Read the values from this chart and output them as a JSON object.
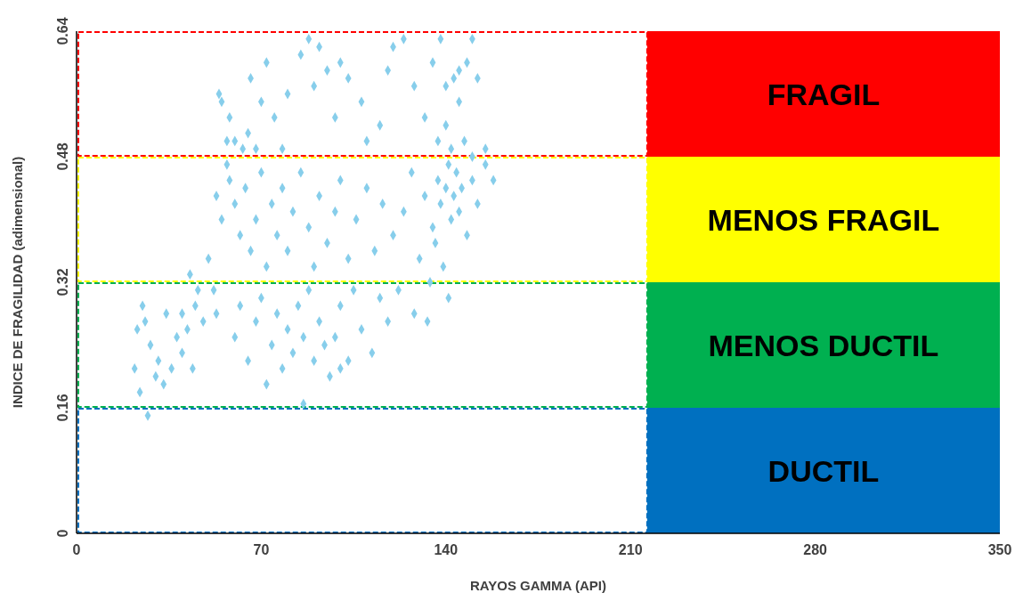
{
  "chart_data": {
    "type": "scatter",
    "xlabel": "RAYOS GAMMA (API)",
    "ylabel": "INDICE DE FRAGILIDAD (adimensional)",
    "xlim": [
      0,
      350
    ],
    "xticks": [
      0,
      70,
      140,
      210,
      280,
      350
    ],
    "ylim": [
      0,
      0.64
    ],
    "yticks": [
      0,
      0.16,
      0.32,
      0.48,
      0.64
    ],
    "grid": false,
    "marker": "diamond",
    "bands": [
      {
        "axis": "y",
        "from": 0.48,
        "to": 0.64,
        "label": "FRAGIL",
        "color": "#ff0000"
      },
      {
        "axis": "y",
        "from": 0.32,
        "to": 0.48,
        "label": "MENOS FRAGIL",
        "color": "#ffff00"
      },
      {
        "axis": "y",
        "from": 0.16,
        "to": 0.32,
        "label": "MENOS DUCTIL",
        "color": "#00b050"
      },
      {
        "axis": "y",
        "from": 0,
        "to": 0.16,
        "label": "DUCTIL",
        "color": "#0070c0"
      }
    ],
    "series": [
      {
        "color": "#87ceeb",
        "x": [
          22,
          23,
          24,
          25,
          26,
          27,
          28,
          30,
          31,
          33,
          34,
          36,
          38,
          40,
          40,
          42,
          43,
          44,
          45,
          46,
          48,
          50,
          52,
          53,
          54,
          55,
          57,
          58,
          60,
          63,
          65,
          66,
          68,
          70,
          72,
          75,
          78,
          80,
          85,
          88,
          90,
          92,
          95,
          98,
          100,
          103,
          108,
          110,
          115,
          118,
          120,
          124,
          128,
          132,
          135,
          138,
          140,
          143,
          145,
          148,
          150,
          152,
          145,
          140,
          137,
          142,
          147,
          150,
          155,
          53,
          55,
          57,
          58,
          60,
          62,
          64,
          66,
          68,
          70,
          72,
          74,
          76,
          78,
          80,
          82,
          85,
          88,
          90,
          92,
          95,
          98,
          100,
          103,
          106,
          110,
          113,
          116,
          120,
          124,
          127,
          130,
          132,
          135,
          137,
          138,
          140,
          141,
          142,
          143,
          144,
          145,
          146,
          148,
          150,
          152,
          155,
          158,
          136,
          139,
          134,
          60,
          62,
          65,
          68,
          70,
          72,
          74,
          76,
          78,
          80,
          82,
          84,
          86,
          88,
          90,
          92,
          94,
          96,
          98,
          100,
          103,
          105,
          108,
          112,
          115,
          118,
          122,
          128,
          133,
          141,
          86,
          100
        ],
        "values": [
          0.21,
          0.26,
          0.18,
          0.29,
          0.27,
          0.15,
          0.24,
          0.2,
          0.22,
          0.19,
          0.28,
          0.21,
          0.25,
          0.23,
          0.28,
          0.26,
          0.33,
          0.21,
          0.29,
          0.31,
          0.27,
          0.35,
          0.31,
          0.28,
          0.56,
          0.55,
          0.5,
          0.53,
          0.5,
          0.49,
          0.51,
          0.58,
          0.49,
          0.55,
          0.6,
          0.53,
          0.49,
          0.56,
          0.61,
          0.63,
          0.57,
          0.62,
          0.59,
          0.53,
          0.6,
          0.58,
          0.55,
          0.5,
          0.52,
          0.59,
          0.62,
          0.63,
          0.57,
          0.53,
          0.6,
          0.63,
          0.57,
          0.58,
          0.59,
          0.6,
          0.63,
          0.58,
          0.55,
          0.52,
          0.5,
          0.49,
          0.5,
          0.48,
          0.49,
          0.43,
          0.4,
          0.47,
          0.45,
          0.42,
          0.38,
          0.44,
          0.36,
          0.4,
          0.46,
          0.34,
          0.42,
          0.38,
          0.44,
          0.36,
          0.41,
          0.46,
          0.39,
          0.34,
          0.43,
          0.37,
          0.41,
          0.45,
          0.35,
          0.4,
          0.44,
          0.36,
          0.42,
          0.38,
          0.41,
          0.46,
          0.35,
          0.43,
          0.39,
          0.45,
          0.42,
          0.44,
          0.47,
          0.4,
          0.43,
          0.46,
          0.41,
          0.44,
          0.38,
          0.45,
          0.42,
          0.47,
          0.45,
          0.37,
          0.34,
          0.32,
          0.25,
          0.29,
          0.22,
          0.27,
          0.3,
          0.19,
          0.24,
          0.28,
          0.21,
          0.26,
          0.23,
          0.29,
          0.25,
          0.31,
          0.22,
          0.27,
          0.24,
          0.2,
          0.25,
          0.29,
          0.22,
          0.31,
          0.26,
          0.23,
          0.3,
          0.27,
          0.31,
          0.28,
          0.27,
          0.3,
          0.165,
          0.21
        ]
      }
    ]
  }
}
